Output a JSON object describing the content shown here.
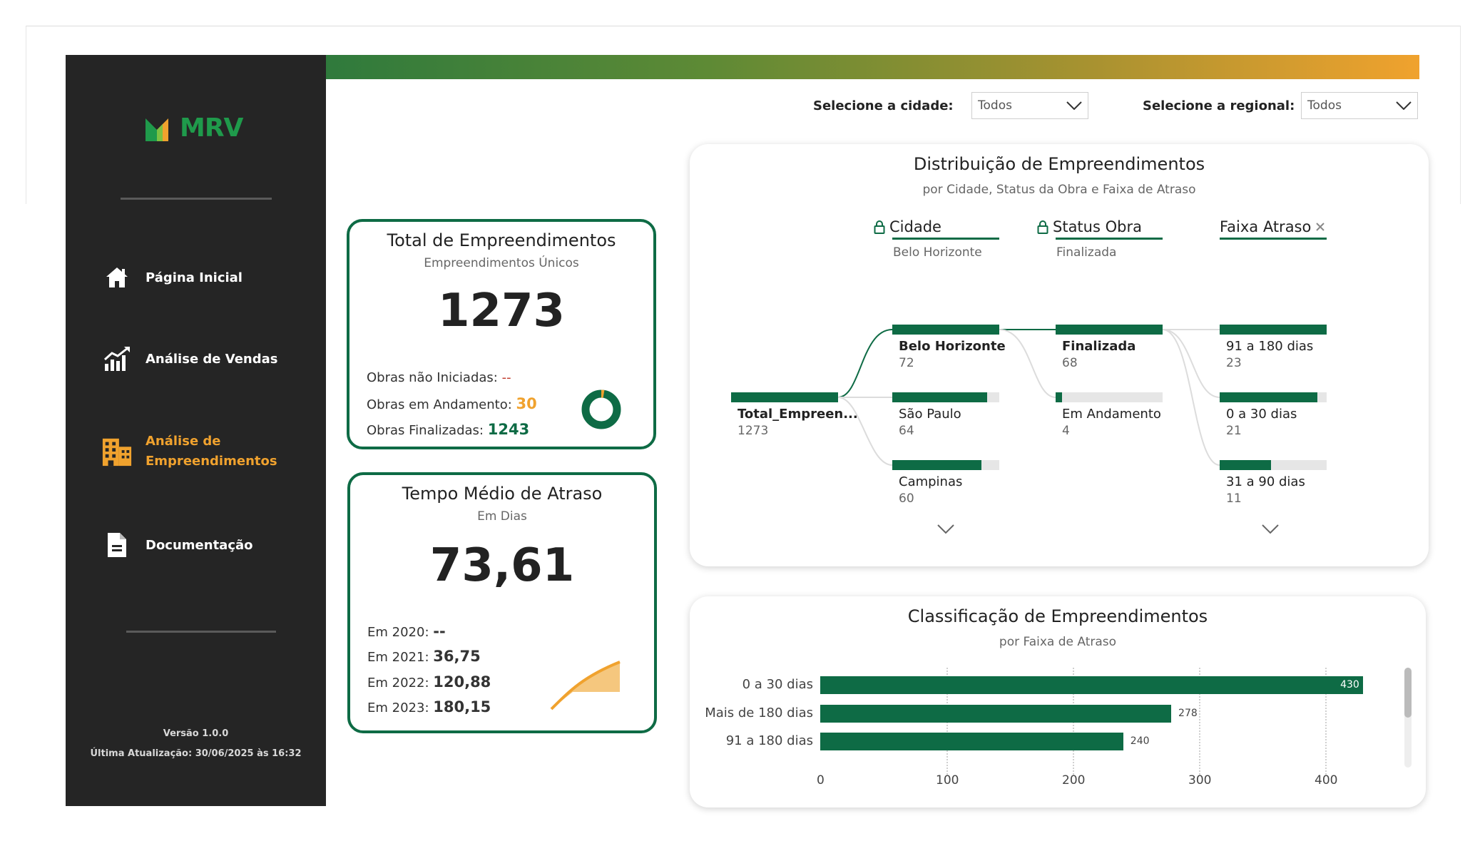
{
  "brand": {
    "logo_text": "MRV",
    "logo_green": "#1f9a4b",
    "logo_orange": "#f0a22e"
  },
  "sidebar": {
    "items": [
      {
        "label": "Página Inicial",
        "icon": "home-icon",
        "active": false
      },
      {
        "label": "Análise de Vendas",
        "icon": "chart-growth-icon",
        "active": false
      },
      {
        "label_line1": "Análise de",
        "label_line2": "Empreendimentos",
        "icon": "building-icon",
        "active": true
      },
      {
        "label": "Documentação",
        "icon": "document-icon",
        "active": false
      }
    ],
    "version": "Versão 1.0.0",
    "last_update": "Última Atualização: 30/06/2025 às 16:32"
  },
  "filters": {
    "city_label": "Selecione a cidade:",
    "city_value": "Todos",
    "regional_label": "Selecione a regional:",
    "regional_value": "Todos"
  },
  "total_card": {
    "title": "Total de Empreendimentos",
    "subtitle": "Empreendimentos Únicos",
    "value": "1273",
    "not_started_label": "Obras não Iniciadas:",
    "not_started_value": "--",
    "in_progress_label": "Obras em Andamento:",
    "in_progress_value": "30",
    "finished_label": "Obras Finalizadas:",
    "finished_value": "1243"
  },
  "delay_card": {
    "title": "Tempo Médio de Atraso",
    "subtitle": "Em Dias",
    "value": "73,61",
    "y2020_label": "Em 2020:",
    "y2020_value": "--",
    "y2021_label": "Em 2021:",
    "y2021_value": "36,75",
    "y2022_label": "Em 2022:",
    "y2022_value": "120,88",
    "y2023_label": "Em 2023:",
    "y2023_value": "180,15"
  },
  "tree": {
    "title": "Distribuição de Empreendimentos",
    "subtitle": "por Cidade, Status da Obra e Faixa de Atraso",
    "levels": [
      {
        "name": "Cidade",
        "selected": "Belo Horizonte",
        "locked": true
      },
      {
        "name": "Status Obra",
        "selected": "Finalizada",
        "locked": true
      },
      {
        "name": "Faixa Atraso",
        "selected": "",
        "locked": false
      }
    ],
    "root": {
      "label": "Total_Empreen...",
      "value": "1273"
    },
    "city_nodes": [
      {
        "label": "Belo Horizonte",
        "value": "72"
      },
      {
        "label": "São Paulo",
        "value": "64"
      },
      {
        "label": "Campinas",
        "value": "60"
      }
    ],
    "status_nodes": [
      {
        "label": "Finalizada",
        "value": "68"
      },
      {
        "label": "Em Andamento",
        "value": "4"
      }
    ],
    "delay_nodes": [
      {
        "label": "91 a 180 dias",
        "value": "23"
      },
      {
        "label": "0 a 30 dias",
        "value": "21"
      },
      {
        "label": "31 a 90 dias",
        "value": "11"
      }
    ]
  },
  "classification": {
    "title": "Classificação de Empreendimentos",
    "subtitle": "por Faixa de Atraso",
    "ticks": [
      "0",
      "100",
      "200",
      "300",
      "400"
    ]
  },
  "chart_data": {
    "type": "bar",
    "orientation": "horizontal",
    "title": "Classificação de Empreendimentos",
    "subtitle": "por Faixa de Atraso",
    "categories": [
      "0 a 30 dias",
      "Mais de 180 dias",
      "91 a 180 dias"
    ],
    "values": [
      430,
      278,
      240
    ],
    "xlim": [
      0,
      450
    ],
    "color": "#0e6b45"
  },
  "colors": {
    "accent_green": "#0e6b45",
    "accent_orange": "#f0a22e",
    "not_started": "#c0392b"
  }
}
